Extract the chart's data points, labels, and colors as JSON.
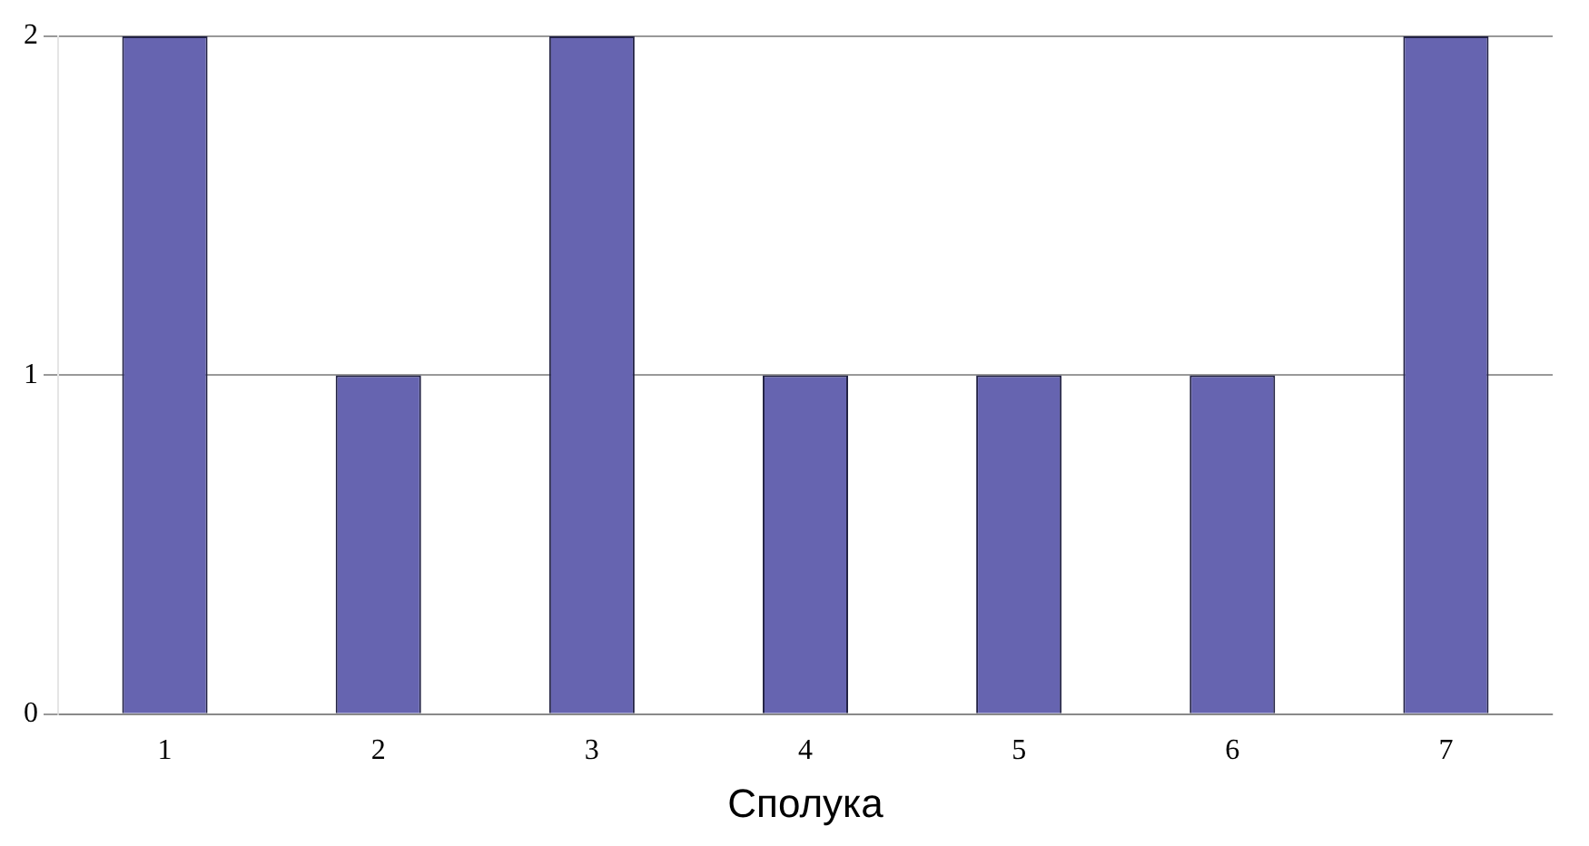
{
  "chart_data": {
    "type": "bar",
    "xlabel": "Сполука",
    "categories": [
      "1",
      "2",
      "3",
      "4",
      "5",
      "6",
      "7"
    ],
    "values": [
      2,
      1,
      2,
      1,
      1,
      1,
      2
    ],
    "color": "#6664b0",
    "ylim": [
      0,
      2
    ],
    "yticks": [
      0,
      1,
      2
    ],
    "grid": "y"
  }
}
